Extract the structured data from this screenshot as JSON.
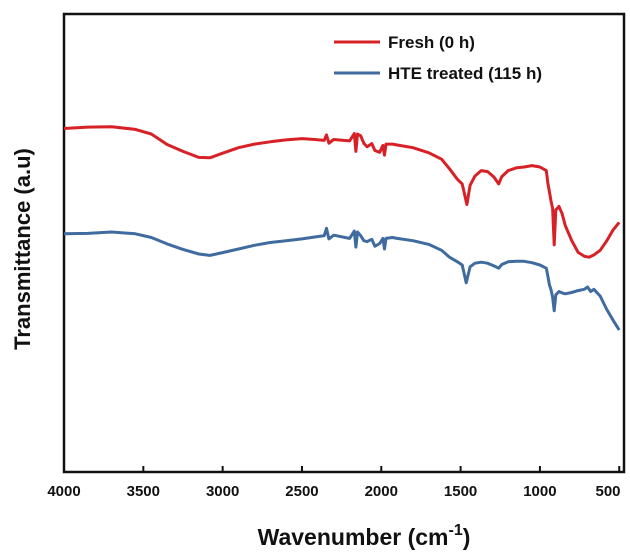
{
  "chart_data": {
    "type": "line",
    "xlabel": "Wavenumber (cm",
    "xlabel_sup": "-1",
    "xlabel_close": ")",
    "ylabel": "Transmittance (a.u)",
    "xlim": [
      4000,
      470
    ],
    "x_reversed": true,
    "ylim": [
      0,
      100
    ],
    "y_tick_labels": false,
    "grid": false,
    "legend_position": "top-right",
    "x_ticks": [
      4000,
      3500,
      3000,
      2500,
      2000,
      1500,
      1000,
      500
    ],
    "x_tick_labels": [
      "4000",
      "3500",
      "3000",
      "2500",
      "2000",
      "1500",
      "1000",
      "500"
    ],
    "series": [
      {
        "name": "Fresh (0 h)",
        "color": "#d82027",
        "points": [
          [
            4000,
            75
          ],
          [
            3850,
            75.3
          ],
          [
            3700,
            75.4
          ],
          [
            3550,
            74.8
          ],
          [
            3450,
            73.8
          ],
          [
            3350,
            71.5
          ],
          [
            3250,
            70
          ],
          [
            3150,
            68.7
          ],
          [
            3080,
            68.6
          ],
          [
            3000,
            69.6
          ],
          [
            2900,
            70.8
          ],
          [
            2800,
            71.6
          ],
          [
            2700,
            72.1
          ],
          [
            2600,
            72.5
          ],
          [
            2500,
            72.8
          ],
          [
            2420,
            72.6
          ],
          [
            2360,
            72.4
          ],
          [
            2345,
            73.6
          ],
          [
            2330,
            71.8
          ],
          [
            2300,
            72.6
          ],
          [
            2200,
            72.3
          ],
          [
            2170,
            73.9
          ],
          [
            2160,
            70.0
          ],
          [
            2150,
            73.8
          ],
          [
            2130,
            73.4
          ],
          [
            2110,
            71.8
          ],
          [
            2090,
            71.0
          ],
          [
            2060,
            71.7
          ],
          [
            2040,
            70.2
          ],
          [
            2010,
            69.8
          ],
          [
            1990,
            71.3
          ],
          [
            1980,
            69.2
          ],
          [
            1970,
            71.6
          ],
          [
            1930,
            71.6
          ],
          [
            1900,
            71.4
          ],
          [
            1800,
            70.8
          ],
          [
            1700,
            69.7
          ],
          [
            1620,
            68.3
          ],
          [
            1570,
            66.2
          ],
          [
            1520,
            63.9
          ],
          [
            1490,
            62.9
          ],
          [
            1460,
            58.4
          ],
          [
            1440,
            62.6
          ],
          [
            1410,
            64.6
          ],
          [
            1370,
            65.8
          ],
          [
            1330,
            65.6
          ],
          [
            1290,
            64.4
          ],
          [
            1260,
            62.9
          ],
          [
            1240,
            64.5
          ],
          [
            1200,
            65.8
          ],
          [
            1150,
            66.4
          ],
          [
            1100,
            66.6
          ],
          [
            1050,
            66.9
          ],
          [
            1000,
            66.6
          ],
          [
            960,
            65.8
          ],
          [
            950,
            63.0
          ],
          [
            940,
            61.2
          ],
          [
            930,
            59.2
          ],
          [
            920,
            57.6
          ],
          [
            910,
            49.6
          ],
          [
            900,
            57.2
          ],
          [
            880,
            58.0
          ],
          [
            860,
            56.4
          ],
          [
            840,
            53.8
          ],
          [
            800,
            50.6
          ],
          [
            760,
            48.0
          ],
          [
            720,
            47.1
          ],
          [
            690,
            46.9
          ],
          [
            660,
            47.4
          ],
          [
            620,
            48.4
          ],
          [
            580,
            50.4
          ],
          [
            540,
            52.8
          ],
          [
            500,
            54.5
          ]
        ]
      },
      {
        "name": "HTE treated (115 h)",
        "color": "#3f6b9f",
        "points": [
          [
            4000,
            52
          ],
          [
            3850,
            52.1
          ],
          [
            3700,
            52.4
          ],
          [
            3550,
            52.0
          ],
          [
            3450,
            51.2
          ],
          [
            3350,
            49.8
          ],
          [
            3250,
            48.6
          ],
          [
            3150,
            47.6
          ],
          [
            3080,
            47.3
          ],
          [
            3000,
            47.9
          ],
          [
            2900,
            48.7
          ],
          [
            2800,
            49.5
          ],
          [
            2700,
            50.1
          ],
          [
            2600,
            50.5
          ],
          [
            2500,
            50.9
          ],
          [
            2420,
            51.3
          ],
          [
            2360,
            51.6
          ],
          [
            2345,
            53.2
          ],
          [
            2330,
            50.9
          ],
          [
            2300,
            51.7
          ],
          [
            2200,
            51.0
          ],
          [
            2170,
            52.6
          ],
          [
            2160,
            49.1
          ],
          [
            2150,
            52.4
          ],
          [
            2130,
            51.6
          ],
          [
            2110,
            50.5
          ],
          [
            2090,
            50.3
          ],
          [
            2060,
            50.8
          ],
          [
            2040,
            49.3
          ],
          [
            2010,
            49.9
          ],
          [
            1990,
            51.0
          ],
          [
            1980,
            48.7
          ],
          [
            1970,
            51.0
          ],
          [
            1930,
            51.2
          ],
          [
            1900,
            51.0
          ],
          [
            1800,
            50.5
          ],
          [
            1700,
            49.7
          ],
          [
            1620,
            48.4
          ],
          [
            1570,
            46.9
          ],
          [
            1520,
            45.9
          ],
          [
            1490,
            45.2
          ],
          [
            1465,
            41.3
          ],
          [
            1440,
            44.8
          ],
          [
            1410,
            45.6
          ],
          [
            1370,
            45.8
          ],
          [
            1330,
            45.6
          ],
          [
            1290,
            45.0
          ],
          [
            1260,
            44.5
          ],
          [
            1240,
            45.3
          ],
          [
            1200,
            45.9
          ],
          [
            1150,
            46.0
          ],
          [
            1100,
            46.0
          ],
          [
            1050,
            45.7
          ],
          [
            1000,
            45.2
          ],
          [
            960,
            44.5
          ],
          [
            950,
            42.7
          ],
          [
            940,
            40.9
          ],
          [
            930,
            39.8
          ],
          [
            920,
            38.2
          ],
          [
            910,
            35.2
          ],
          [
            900,
            38.7
          ],
          [
            880,
            39.4
          ],
          [
            860,
            39.1
          ],
          [
            840,
            38.9
          ],
          [
            800,
            39.2
          ],
          [
            760,
            39.6
          ],
          [
            720,
            39.9
          ],
          [
            700,
            40.4
          ],
          [
            680,
            39.4
          ],
          [
            660,
            39.9
          ],
          [
            620,
            38.4
          ],
          [
            580,
            35.6
          ],
          [
            540,
            33.2
          ],
          [
            500,
            31.0
          ]
        ]
      }
    ]
  }
}
